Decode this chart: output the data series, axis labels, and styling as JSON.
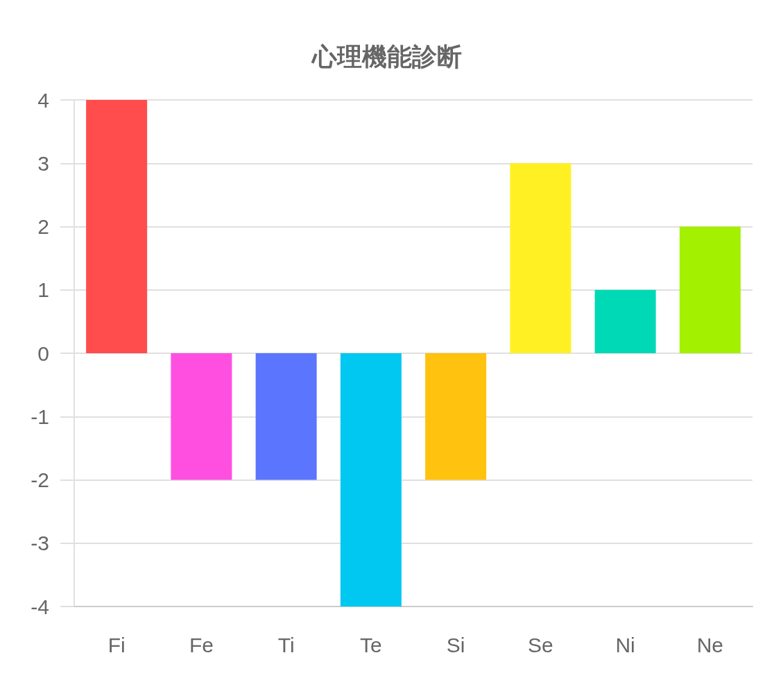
{
  "chart_data": {
    "type": "bar",
    "title": "心理機能診断",
    "categories": [
      "Fi",
      "Fe",
      "Ti",
      "Te",
      "Si",
      "Se",
      "Ni",
      "Ne"
    ],
    "values": [
      4,
      -2,
      -2,
      -4,
      -2,
      3,
      1,
      2
    ],
    "colors": [
      "#ff4d4d",
      "#ff4fe1",
      "#5b75ff",
      "#00c8f0",
      "#ffc20e",
      "#fff024",
      "#00d9b5",
      "#a3f000"
    ],
    "ylim": [
      -4,
      4
    ],
    "yticks": [
      -4,
      -3,
      -2,
      -1,
      0,
      1,
      2,
      3,
      4
    ],
    "grid": "y"
  }
}
